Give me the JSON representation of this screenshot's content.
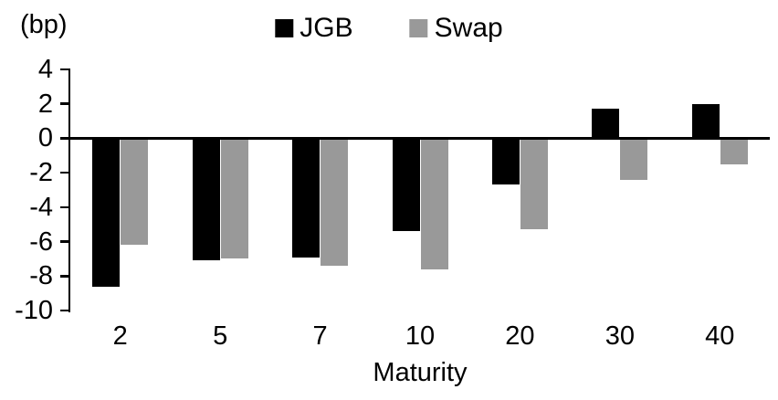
{
  "chart_data": {
    "type": "bar",
    "unit_label": "(bp)",
    "xlabel": "Maturity",
    "ylabel": "",
    "title": "",
    "categories": [
      "2",
      "5",
      "7",
      "10",
      "20",
      "30",
      "40"
    ],
    "series": [
      {
        "name": "JGB",
        "color": "#000000",
        "values": [
          -8.6,
          -7.1,
          -6.9,
          -5.4,
          -2.7,
          1.7,
          2.0
        ]
      },
      {
        "name": "Swap",
        "color": "#999999",
        "values": [
          -6.2,
          -7.0,
          -7.4,
          -7.6,
          -5.3,
          -2.4,
          -1.5
        ]
      }
    ],
    "yticks": [
      4,
      2,
      0,
      -2,
      -4,
      -6,
      -8,
      -10
    ],
    "ylim": [
      -10,
      4
    ],
    "grid": false,
    "legend_position": "top-center",
    "axis_color": "#000000",
    "background": "#ffffff"
  }
}
